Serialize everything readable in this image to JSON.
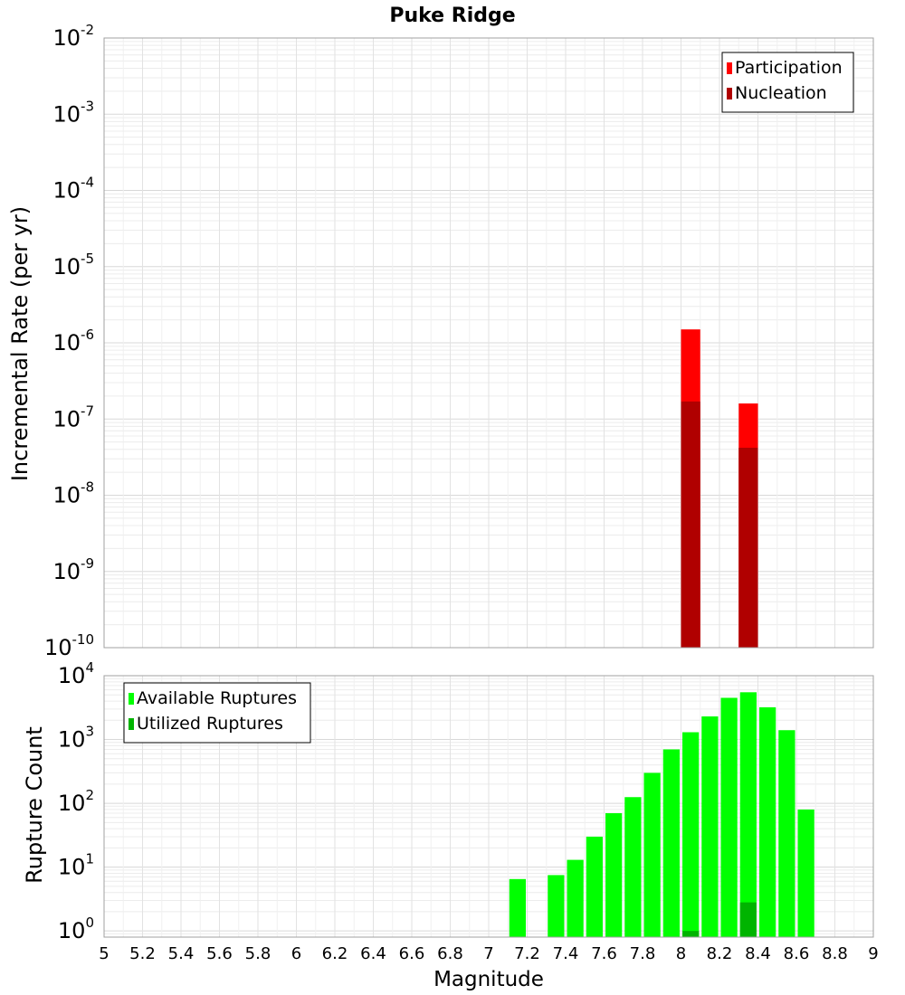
{
  "chart_data": [
    {
      "type": "bar",
      "title": "Puke Ridge",
      "xlabel": "",
      "ylabel": "Incremental Rate (per yr)",
      "yscale": "log",
      "ylim": [
        1e-10,
        0.01
      ],
      "xlim": [
        5,
        9
      ],
      "grid": true,
      "legend_position": "top-right",
      "y_ticks": [
        {
          "base": "10",
          "exp": "-10"
        },
        {
          "base": "10",
          "exp": "-9"
        },
        {
          "base": "10",
          "exp": "-8"
        },
        {
          "base": "10",
          "exp": "-7"
        },
        {
          "base": "10",
          "exp": "-6"
        },
        {
          "base": "10",
          "exp": "-5"
        },
        {
          "base": "10",
          "exp": "-4"
        },
        {
          "base": "10",
          "exp": "-3"
        },
        {
          "base": "10",
          "exp": "-2"
        }
      ],
      "bar_width": 0.1,
      "series": [
        {
          "name": "Participation",
          "color": "#ff0000",
          "x": [
            8.05,
            8.35
          ],
          "values": [
            1.5e-06,
            1.6e-07
          ]
        },
        {
          "name": "Nucleation",
          "color": "#b00000",
          "x": [
            8.05,
            8.35
          ],
          "values": [
            1.7e-07,
            4.2e-08
          ]
        }
      ]
    },
    {
      "type": "bar",
      "title": "",
      "xlabel": "Magnitude",
      "ylabel": "Rupture Count",
      "yscale": "log",
      "ylim": [
        0.8,
        10000
      ],
      "xlim": [
        5,
        9
      ],
      "grid": true,
      "legend_position": "top-left",
      "y_ticks": [
        {
          "base": "10",
          "exp": "0",
          "value": 1
        },
        {
          "base": "10",
          "exp": "1",
          "value": 10
        },
        {
          "base": "10",
          "exp": "2",
          "value": 100
        },
        {
          "base": "10",
          "exp": "3",
          "value": 1000
        },
        {
          "base": "10",
          "exp": "4",
          "value": 10000
        }
      ],
      "x_ticks": [
        "5",
        "5.2",
        "5.4",
        "5.6",
        "5.8",
        "6",
        "6.2",
        "6.4",
        "6.6",
        "6.8",
        "7",
        "7.2",
        "7.4",
        "7.6",
        "7.8",
        "8",
        "8.2",
        "8.4",
        "8.6",
        "8.8",
        "9"
      ],
      "bar_width": 0.1,
      "series": [
        {
          "name": "Available Ruptures",
          "color": "#00ff00",
          "x": [
            7.15,
            7.35,
            7.45,
            7.55,
            7.65,
            7.75,
            7.85,
            7.95,
            8.05,
            8.15,
            8.25,
            8.35,
            8.45,
            8.55,
            8.65
          ],
          "values": [
            6.5,
            7.5,
            13,
            30,
            70,
            125,
            300,
            700,
            1300,
            2300,
            4500,
            5500,
            3200,
            1400,
            80
          ]
        },
        {
          "name": "Utilized Ruptures",
          "color": "#00b400",
          "x": [
            8.05,
            8.35
          ],
          "values": [
            1.0,
            2.8
          ]
        }
      ]
    }
  ]
}
